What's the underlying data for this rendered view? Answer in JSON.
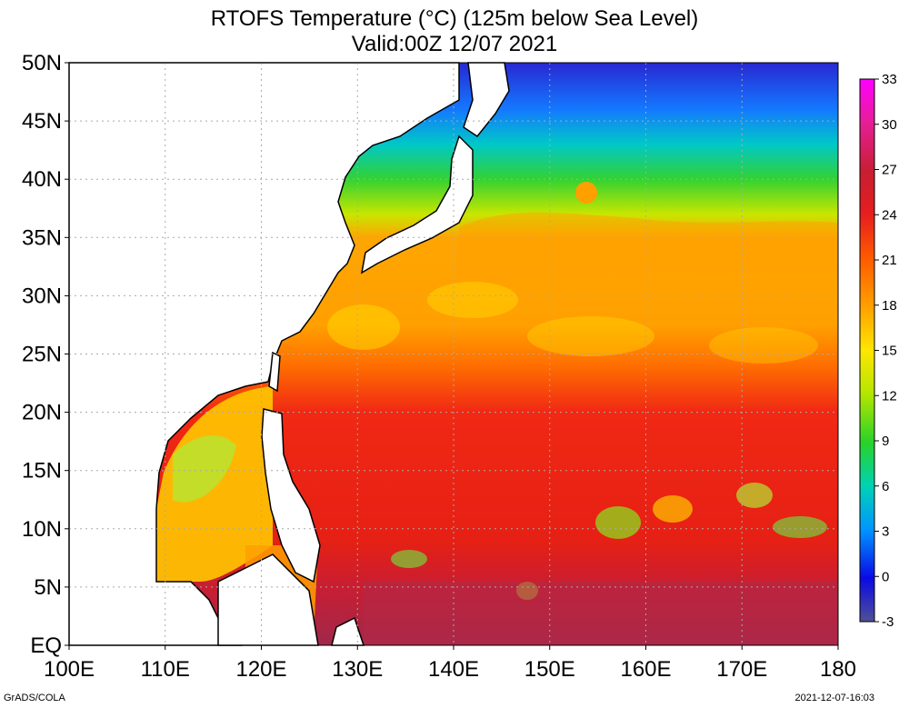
{
  "title": {
    "line1": "RTOFS Temperature (°C) (125m below Sea Level)",
    "line2": "Valid:00Z 12/07 2021"
  },
  "lat_labels": [
    "50N",
    "45N",
    "40N",
    "35N",
    "30N",
    "25N",
    "20N",
    "15N",
    "10N",
    "5N",
    "EQ"
  ],
  "lon_labels": [
    "100E",
    "110E",
    "120E",
    "130E",
    "140E",
    "150E",
    "160E",
    "170E",
    "180"
  ],
  "colorbar": {
    "labels": [
      "33",
      "30",
      "27",
      "24",
      "21",
      "18",
      "15",
      "12",
      "9",
      "6",
      "3",
      "0",
      "-3"
    ],
    "colors": [
      "#ff00ff",
      "#e6198c",
      "#c81e32",
      "#e61e1e",
      "#ff5a00",
      "#ffa000",
      "#ffe600",
      "#b4e600",
      "#28d228",
      "#00d2b4",
      "#0096ff",
      "#0a0ae6",
      "#505096"
    ]
  },
  "footer": {
    "left": "GrADS/COLA",
    "right": "2021-12-07-16:03"
  }
}
